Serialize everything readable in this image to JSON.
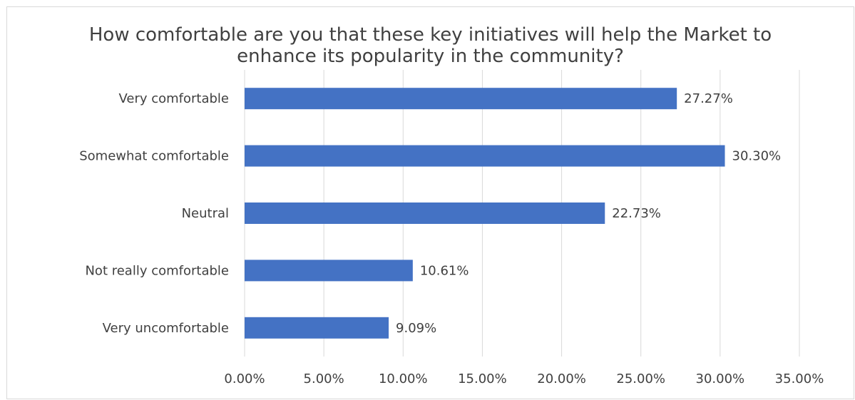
{
  "chart_data": {
    "type": "bar",
    "orientation": "horizontal",
    "title_lines": [
      "How comfortable are you that these key initiatives will help the Market to",
      "enhance its popularity in the community?"
    ],
    "categories": [
      "Very comfortable",
      "Somewhat comfortable",
      "Neutral",
      "Not really comfortable",
      "Very uncomfortable"
    ],
    "values": [
      27.27,
      30.3,
      22.73,
      10.61,
      9.09
    ],
    "data_labels": [
      "27.27%",
      "30.30%",
      "22.73%",
      "10.61%",
      "9.09%"
    ],
    "x_ticks": [
      "0.00%",
      "5.00%",
      "10.00%",
      "15.00%",
      "20.00%",
      "25.00%",
      "30.00%",
      "35.00%"
    ],
    "xlim": [
      0,
      35
    ],
    "grid": "vertical",
    "legend": "none",
    "bar_color": "#4472c4",
    "grid_color": "#d9d9d9",
    "text_color": "#404040"
  }
}
